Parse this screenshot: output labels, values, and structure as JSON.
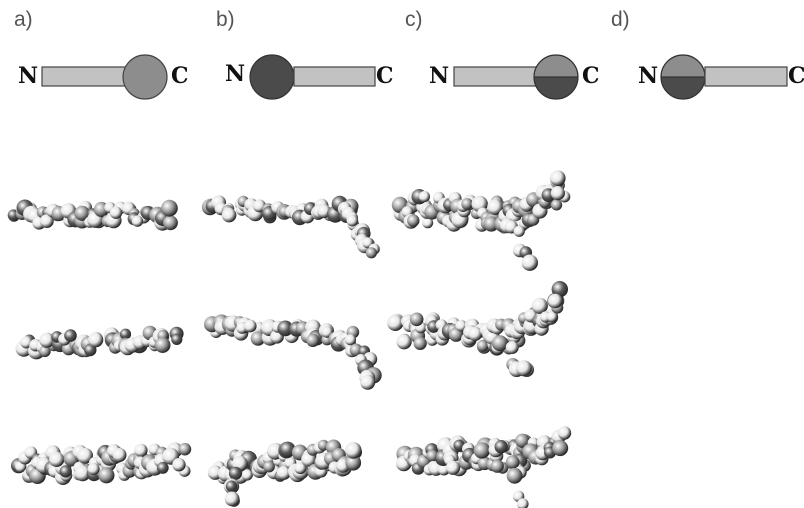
{
  "panels": [
    {
      "label": "a)",
      "n_label": "N",
      "c_label": "C",
      "bead_position": "C-terminus",
      "bead_fill": "single-grey"
    },
    {
      "label": "b)",
      "n_label": "N",
      "c_label": "C",
      "bead_position": "N-terminus",
      "bead_fill": "single-dark"
    },
    {
      "label": "c)",
      "n_label": "N",
      "c_label": "C",
      "bead_position": "C-terminus",
      "bead_fill": "split-grey-dark"
    },
    {
      "label": "d)",
      "n_label": "N",
      "c_label": "C",
      "bead_position": "N-terminus",
      "bead_fill": "split-grey-dark"
    }
  ],
  "colors": {
    "rod": "#c2c2c2",
    "rod_stroke": "#444444",
    "bead_grey": "#8d8d8d",
    "bead_dark": "#4b4b4b",
    "atom_light": "#e6e6e6",
    "atom_mid": "#9c9c9c",
    "atom_dark": "#5a5a5a"
  },
  "model_grid": {
    "columns": [
      "a)",
      "b)",
      "c)"
    ],
    "rows": 3,
    "shapes": [
      "straight",
      "kinked-down-right",
      "kinked-up-right"
    ]
  }
}
